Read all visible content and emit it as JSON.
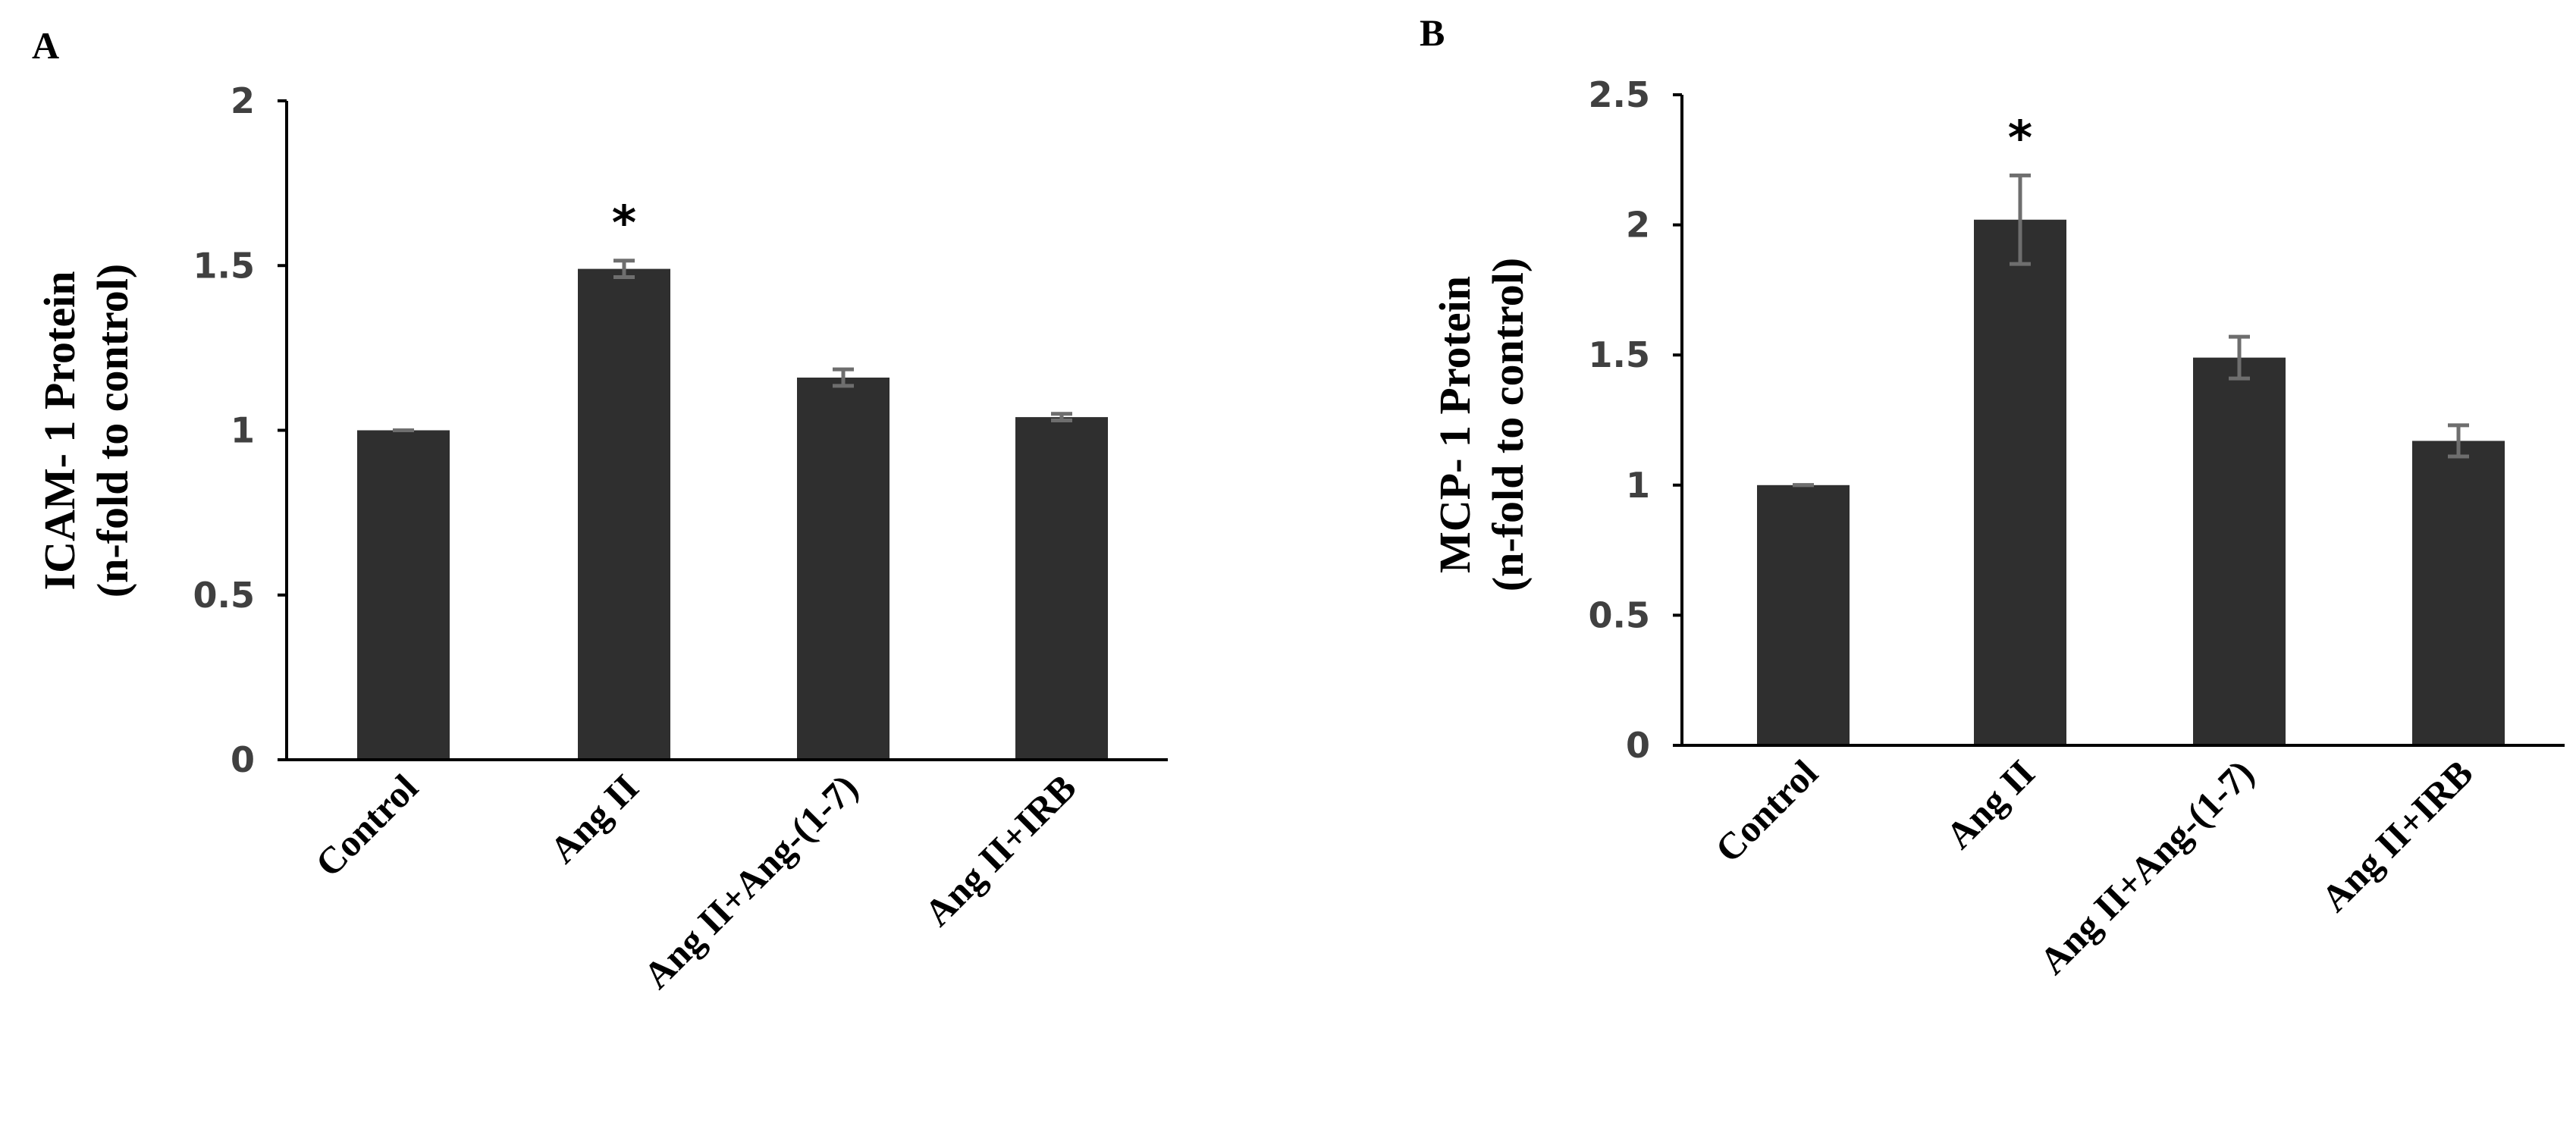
{
  "chart_data": [
    {
      "panel": "A",
      "type": "bar",
      "ylabel_line1": "ICAM- 1 Protein",
      "ylabel_line2": "(n-fold to control)",
      "categories": [
        "Control",
        "Ang II",
        "Ang II+Ang-(1-7)",
        "Ang II+IRB"
      ],
      "values": [
        1.0,
        1.49,
        1.16,
        1.04
      ],
      "errors": [
        0.0,
        0.025,
        0.025,
        0.01
      ],
      "significance": [
        "",
        "*",
        "",
        ""
      ],
      "ylim": [
        0,
        2
      ],
      "yticks": [
        "0",
        "0.5",
        "1",
        "1.5",
        "2"
      ],
      "bar_color": "#2f2f2f",
      "grid": false
    },
    {
      "panel": "B",
      "type": "bar",
      "ylabel_line1": "MCP- 1 Protein",
      "ylabel_line2": "(n-fold to control)",
      "categories": [
        "Control",
        "Ang II",
        "Ang II+Ang-(1-7)",
        "Ang II+IRB"
      ],
      "values": [
        1.0,
        2.02,
        1.49,
        1.17
      ],
      "errors": [
        0.0,
        0.17,
        0.08,
        0.06
      ],
      "significance": [
        "",
        "*",
        "",
        ""
      ],
      "ylim": [
        0,
        2.5
      ],
      "yticks": [
        "0",
        "0.5",
        "1",
        "1.5",
        "2",
        "2.5"
      ],
      "bar_color": "#2f2f2f",
      "grid": false
    }
  ]
}
